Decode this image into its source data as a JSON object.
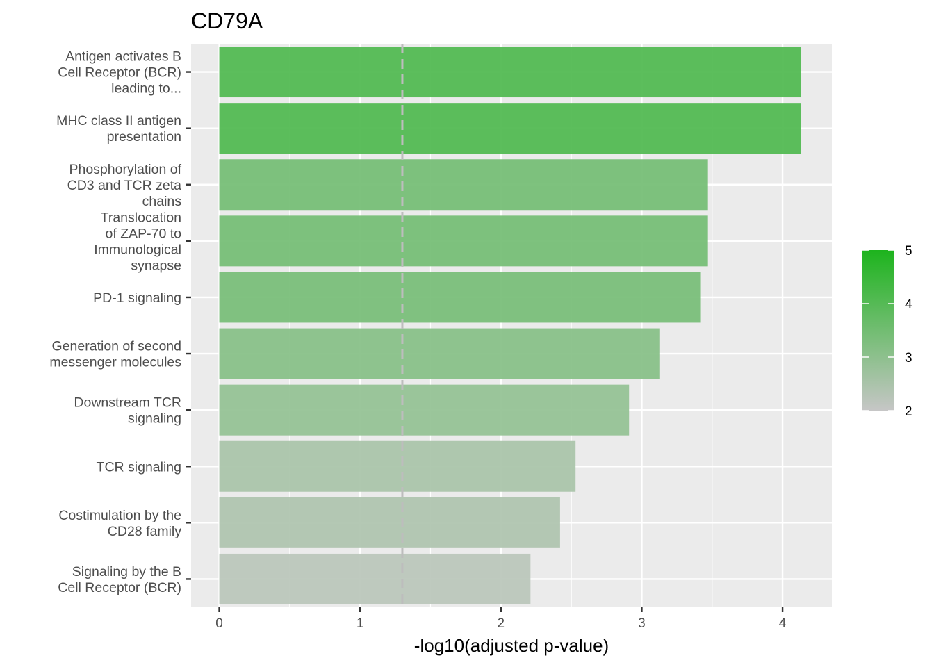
{
  "chart_data": {
    "type": "bar",
    "orientation": "horizontal",
    "title": "CD79A",
    "xlabel": "-log10(adjusted p-value)",
    "ylabel": "",
    "xlim": [
      -0.2,
      4.35
    ],
    "xticks": [
      "0",
      "1",
      "2",
      "3",
      "4"
    ],
    "threshold_line": 1.3,
    "categories": [
      [
        "Antigen activates B",
        "Cell Receptor (BCR)",
        "leading to..."
      ],
      [
        "MHC class II antigen",
        "presentation"
      ],
      [
        "Phosphorylation of",
        "CD3 and TCR zeta",
        "chains"
      ],
      [
        "Translocation",
        "of ZAP-70 to",
        "Immunological",
        "synapse"
      ],
      [
        "PD-1 signaling"
      ],
      [
        "Generation of second",
        "messenger molecules"
      ],
      [
        "Downstream TCR",
        "signaling"
      ],
      [
        "TCR signaling"
      ],
      [
        "Costimulation by the",
        "CD28 family"
      ],
      [
        "Signaling by the B",
        "Cell Receptor (BCR)"
      ]
    ],
    "values": [
      4.13,
      4.13,
      3.47,
      3.47,
      3.42,
      3.13,
      2.91,
      2.53,
      2.42,
      2.21
    ],
    "color_scale": {
      "low": "#c6c6c6",
      "high": "#1db41d",
      "limits": [
        2,
        5
      ],
      "breaks": [
        "2",
        "3",
        "4",
        "5"
      ]
    },
    "panel_background": "#ebebeb",
    "grid": true,
    "legend": "right"
  }
}
